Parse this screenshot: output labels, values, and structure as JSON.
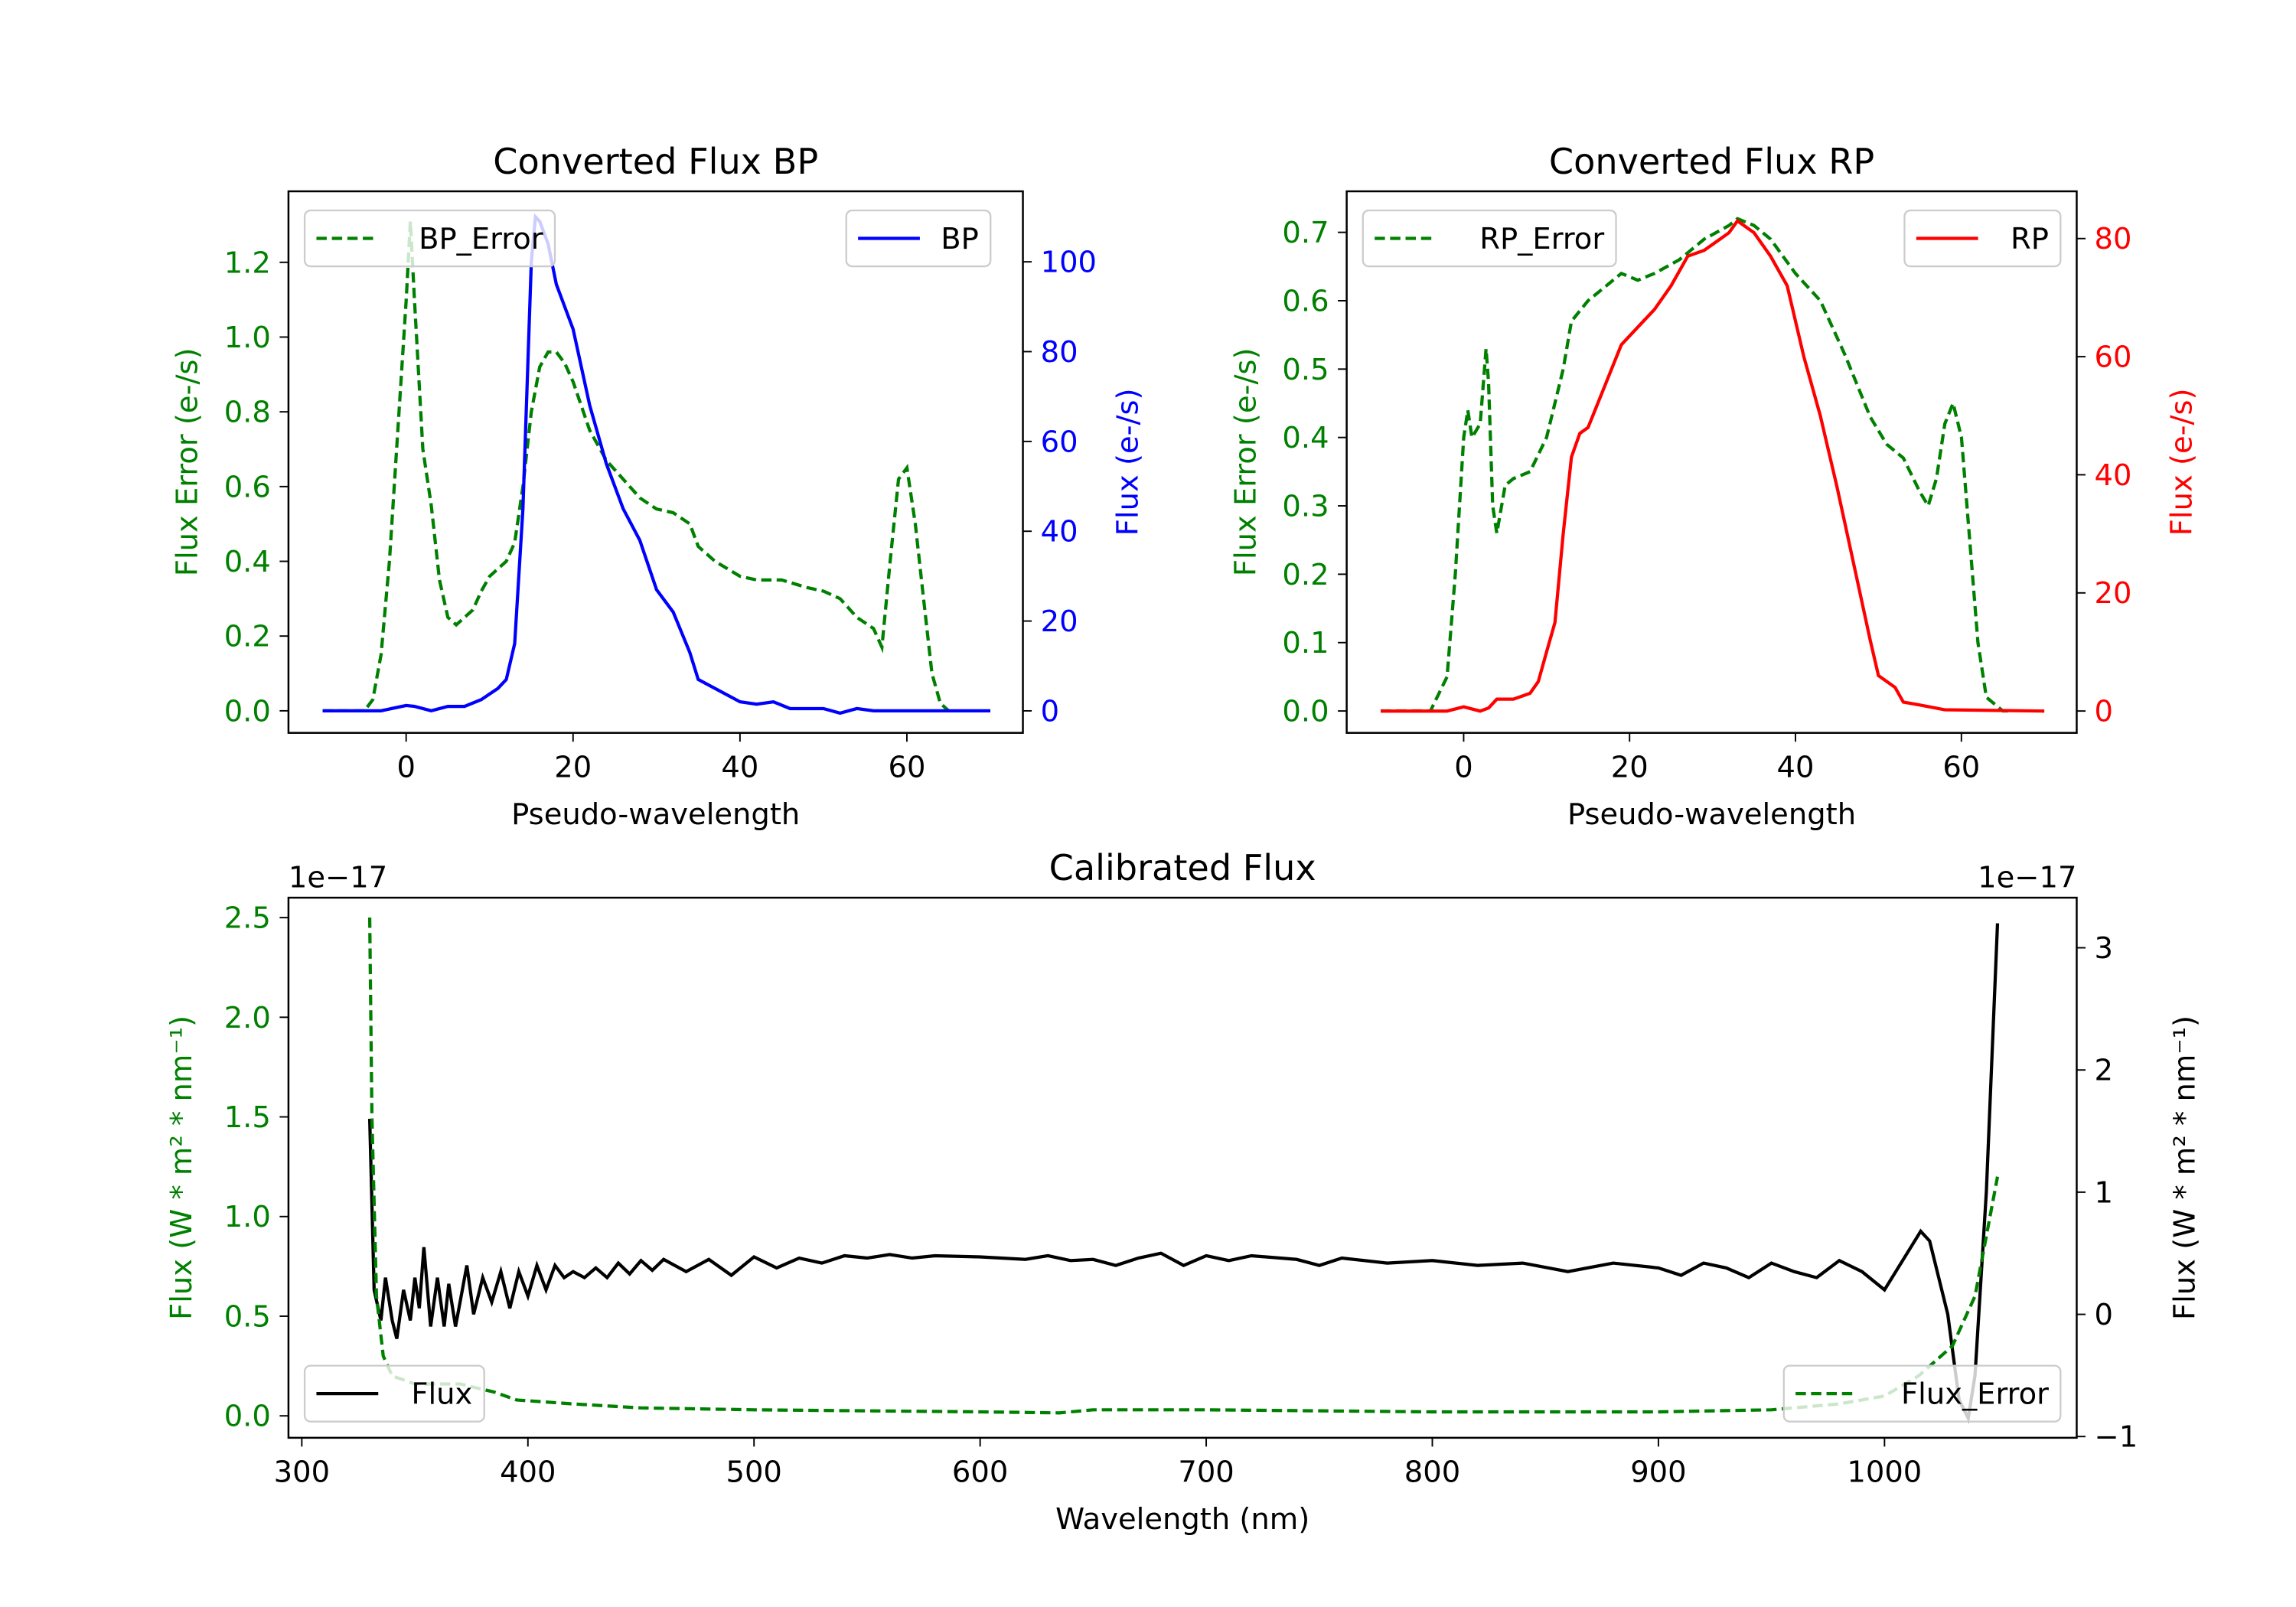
{
  "colors": {
    "error": "#008000",
    "bp": "#0000ff",
    "rp": "#ff0000",
    "flux": "#000000"
  },
  "chart_data": [
    {
      "type": "line",
      "title": "Converted Flux BP",
      "xlabel": "Pseudo-wavelength",
      "ylabel_left": "Flux Error (e-/s)",
      "ylabel_right": "Flux (e-/s)",
      "xlim": [
        -14.1,
        73.9
      ],
      "ylim_left": [
        -0.059,
        1.39
      ],
      "ylim_right": [
        -4.9,
        115.7
      ],
      "xticks": [
        "0",
        "20",
        "40",
        "60"
      ],
      "xtick_values": [
        0,
        20,
        40,
        60
      ],
      "yticks_left": [
        "0.0",
        "0.2",
        "0.4",
        "0.6",
        "0.8",
        "1.0",
        "1.2"
      ],
      "ytick_values_left": [
        0,
        0.2,
        0.4,
        0.6,
        0.8,
        1.0,
        1.2
      ],
      "yticks_right": [
        "0",
        "20",
        "40",
        "60",
        "80",
        "100"
      ],
      "ytick_values_right": [
        0,
        20,
        40,
        60,
        80,
        100
      ],
      "series": [
        {
          "name": "BP_Error",
          "axis": "left",
          "style": "dashed",
          "color": "#008000",
          "legend": "upper left",
          "x": [
            -10,
            -5,
            -4,
            -3,
            -2,
            -1,
            0,
            0.5,
            1,
            2,
            3,
            4,
            5,
            6,
            8,
            9,
            10,
            12,
            13,
            14,
            15,
            16,
            17,
            18,
            19,
            20,
            22,
            24,
            26,
            28,
            30,
            32,
            34,
            35,
            37,
            40,
            42,
            45,
            48,
            50,
            52,
            54,
            56,
            57,
            58,
            59,
            60,
            61,
            62,
            63,
            64,
            65
          ],
          "y": [
            0,
            0,
            0.03,
            0.15,
            0.4,
            0.75,
            1.1,
            1.31,
            1.1,
            0.7,
            0.55,
            0.35,
            0.25,
            0.23,
            0.27,
            0.32,
            0.36,
            0.4,
            0.45,
            0.6,
            0.8,
            0.92,
            0.96,
            0.96,
            0.93,
            0.88,
            0.75,
            0.67,
            0.62,
            0.57,
            0.54,
            0.53,
            0.5,
            0.44,
            0.4,
            0.36,
            0.35,
            0.35,
            0.33,
            0.32,
            0.3,
            0.25,
            0.22,
            0.17,
            0.4,
            0.62,
            0.65,
            0.5,
            0.3,
            0.1,
            0.02,
            0
          ]
        },
        {
          "name": "BP",
          "axis": "right",
          "style": "solid",
          "color": "#0000ff",
          "legend": "upper right",
          "x": [
            -10,
            -3,
            0,
            1,
            3,
            5,
            7,
            9,
            11,
            12,
            13,
            14,
            15,
            15.5,
            16,
            17,
            18,
            20,
            22,
            24,
            26,
            28,
            30,
            32,
            34,
            35,
            37,
            40,
            42,
            44,
            46,
            48,
            50,
            52,
            54,
            56,
            70
          ],
          "y": [
            0,
            0,
            1.2,
            1,
            0,
            1,
            1,
            2.5,
            5,
            7,
            15,
            45,
            100,
            110,
            109,
            104,
            95,
            85,
            68,
            55,
            45,
            38,
            27,
            22,
            13,
            7,
            5,
            2,
            1.5,
            2,
            0.5,
            0.5,
            0.5,
            -0.5,
            0.5,
            0,
            0
          ]
        }
      ]
    },
    {
      "type": "line",
      "title": "Converted Flux RP",
      "xlabel": "Pseudo-wavelength",
      "ylabel_left": "Flux Error (e-/s)",
      "ylabel_right": "Flux (e-/s)",
      "xlim": [
        -14.1,
        73.9
      ],
      "ylim_left": [
        -0.032,
        0.76
      ],
      "ylim_right": [
        -3.7,
        88
      ],
      "xticks": [
        "0",
        "20",
        "40",
        "60"
      ],
      "xtick_values": [
        0,
        20,
        40,
        60
      ],
      "yticks_left": [
        "0.0",
        "0.1",
        "0.2",
        "0.3",
        "0.4",
        "0.5",
        "0.6",
        "0.7"
      ],
      "ytick_values_left": [
        0,
        0.1,
        0.2,
        0.3,
        0.4,
        0.5,
        0.6,
        0.7
      ],
      "yticks_right": [
        "0",
        "20",
        "40",
        "60",
        "80"
      ],
      "ytick_values_right": [
        0,
        20,
        40,
        60,
        80
      ],
      "series": [
        {
          "name": "RP_Error",
          "axis": "left",
          "style": "dashed",
          "color": "#008000",
          "legend": "upper left",
          "x": [
            -10,
            -4,
            -2,
            -1,
            0,
            0.5,
            1,
            2,
            2.7,
            3,
            3.5,
            4,
            5,
            6,
            8,
            10,
            12,
            13,
            15,
            17,
            19,
            21,
            23,
            26,
            29,
            32,
            33,
            35,
            37,
            40,
            43,
            46,
            49,
            51,
            53,
            55,
            56,
            57,
            58,
            59,
            60,
            61,
            62,
            63,
            65,
            66
          ],
          "y": [
            0,
            0,
            0.05,
            0.2,
            0.4,
            0.44,
            0.4,
            0.42,
            0.53,
            0.48,
            0.3,
            0.26,
            0.33,
            0.34,
            0.35,
            0.4,
            0.5,
            0.57,
            0.6,
            0.62,
            0.64,
            0.63,
            0.64,
            0.66,
            0.69,
            0.71,
            0.72,
            0.71,
            0.69,
            0.64,
            0.6,
            0.52,
            0.43,
            0.39,
            0.37,
            0.32,
            0.3,
            0.34,
            0.42,
            0.45,
            0.4,
            0.25,
            0.1,
            0.02,
            0,
            0
          ]
        },
        {
          "name": "RP",
          "axis": "right",
          "style": "solid",
          "color": "#ff0000",
          "legend": "upper right",
          "x": [
            -10,
            -2,
            0,
            2,
            3,
            4,
            6,
            8,
            9,
            10,
            11,
            12,
            13,
            14,
            15,
            17,
            19,
            21,
            23,
            25,
            27,
            29,
            31,
            32,
            33,
            35,
            37,
            39,
            41,
            43,
            45,
            47,
            49,
            50,
            52,
            53,
            55,
            58,
            70
          ],
          "y": [
            0,
            0,
            0.7,
            0,
            0.5,
            2,
            2,
            3,
            5,
            10,
            15,
            30,
            43,
            47,
            48,
            55,
            62,
            65,
            68,
            72,
            77,
            78,
            80,
            81,
            83,
            81,
            77,
            72,
            60,
            50,
            38,
            25,
            12,
            6,
            4,
            1.5,
            1,
            0.2,
            0
          ]
        }
      ]
    },
    {
      "type": "line",
      "title": "Calibrated Flux",
      "xlabel": "Wavelength (nm)",
      "ylabel_left": "Flux (W * m² * nm⁻¹)",
      "ylabel_right": "Flux (W * m² * nm⁻¹)",
      "offset_left": "1e−17",
      "offset_right": "1e−17",
      "xlim": [
        294.1,
        1085
      ],
      "ylim_left": [
        -0.11,
        2.6
      ],
      "ylim_right": [
        -1.01,
        3.41
      ],
      "xticks": [
        "300",
        "400",
        "500",
        "600",
        "700",
        "800",
        "900",
        "1000"
      ],
      "xtick_values": [
        300,
        400,
        500,
        600,
        700,
        800,
        900,
        1000
      ],
      "yticks_left": [
        "0.0",
        "0.5",
        "1.0",
        "1.5",
        "2.0",
        "2.5"
      ],
      "ytick_values_left": [
        0,
        0.5,
        1,
        1.5,
        2,
        2.5
      ],
      "yticks_right": [
        "−1",
        "0",
        "1",
        "2",
        "3"
      ],
      "ytick_values_right": [
        -1,
        0,
        1,
        2,
        3
      ],
      "series": [
        {
          "name": "Flux",
          "axis": "right",
          "style": "solid",
          "color": "#000000",
          "legend": "lower left",
          "x": [
            330,
            332,
            335,
            337,
            340,
            342,
            345,
            348,
            350,
            352,
            354,
            357,
            360,
            363,
            365,
            368,
            370,
            373,
            376,
            380,
            384,
            388,
            392,
            396,
            400,
            404,
            408,
            412,
            416,
            420,
            425,
            430,
            435,
            440,
            445,
            450,
            455,
            460,
            470,
            480,
            490,
            500,
            510,
            520,
            530,
            540,
            550,
            560,
            570,
            580,
            600,
            620,
            630,
            640,
            650,
            660,
            670,
            680,
            690,
            700,
            710,
            720,
            740,
            750,
            760,
            780,
            800,
            820,
            840,
            860,
            880,
            900,
            910,
            920,
            930,
            940,
            950,
            960,
            970,
            980,
            990,
            1000,
            1010,
            1016,
            1020,
            1028,
            1033,
            1037,
            1040,
            1045,
            1050
          ],
          "y": [
            1.6,
            0.2,
            -0.05,
            0.3,
            -0.05,
            -0.2,
            0.2,
            -0.05,
            0.3,
            0.05,
            0.55,
            -0.1,
            0.3,
            -0.1,
            0.25,
            -0.1,
            0.1,
            0.4,
            0,
            0.3,
            0.1,
            0.35,
            0.05,
            0.35,
            0.15,
            0.4,
            0.2,
            0.4,
            0.3,
            0.35,
            0.3,
            0.38,
            0.3,
            0.42,
            0.33,
            0.44,
            0.36,
            0.45,
            0.35,
            0.45,
            0.32,
            0.47,
            0.38,
            0.46,
            0.42,
            0.48,
            0.46,
            0.49,
            0.46,
            0.48,
            0.47,
            0.45,
            0.48,
            0.44,
            0.45,
            0.4,
            0.46,
            0.5,
            0.4,
            0.48,
            0.44,
            0.48,
            0.45,
            0.4,
            0.46,
            0.42,
            0.44,
            0.4,
            0.42,
            0.35,
            0.42,
            0.38,
            0.32,
            0.42,
            0.38,
            0.3,
            0.42,
            0.35,
            0.3,
            0.44,
            0.35,
            0.2,
            0.5,
            0.68,
            0.6,
            0,
            -0.7,
            -0.85,
            -0.5,
            1,
            3.2
          ]
        },
        {
          "name": "Flux_Error",
          "axis": "left",
          "style": "dashed",
          "color": "#008000",
          "legend": "lower right",
          "x": [
            330,
            331,
            333,
            336,
            340,
            350,
            360,
            370,
            385,
            395,
            420,
            450,
            500,
            600,
            635,
            650,
            700,
            800,
            900,
            950,
            980,
            1000,
            1015,
            1030,
            1040,
            1050
          ],
          "y": [
            2.5,
            1.5,
            0.6,
            0.3,
            0.2,
            0.16,
            0.16,
            0.16,
            0.12,
            0.08,
            0.06,
            0.04,
            0.03,
            0.02,
            0.015,
            0.03,
            0.03,
            0.02,
            0.02,
            0.03,
            0.06,
            0.1,
            0.2,
            0.35,
            0.6,
            1.2
          ]
        }
      ]
    }
  ]
}
